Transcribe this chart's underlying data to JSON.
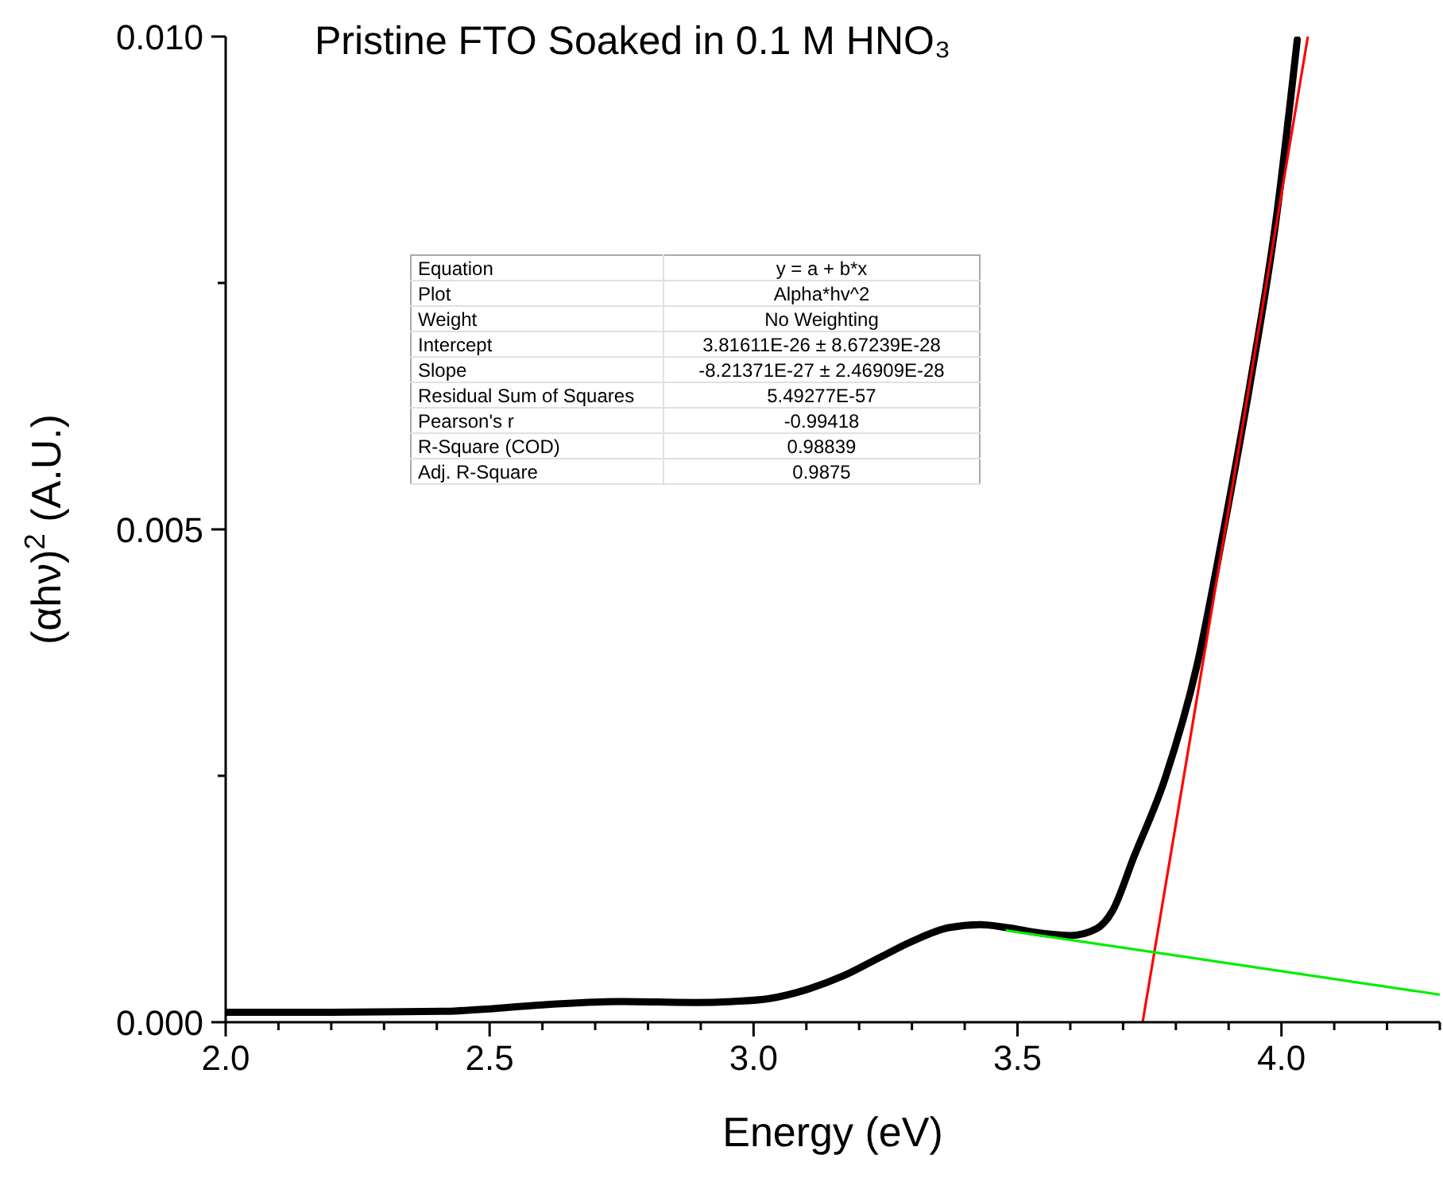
{
  "chart_data": {
    "type": "line",
    "title": "Pristine FTO Soaked in 0.1 M HNO₃",
    "xlabel": "Energy (eV)",
    "ylabel": "(αhν)$^{2}$ (A.U.)",
    "xlim": [
      2.0,
      4.3
    ],
    "ylim": [
      0,
      0.01
    ],
    "xticks": [
      {
        "value": 2.0,
        "label": "2.0"
      },
      {
        "value": 2.1,
        "label": null
      },
      {
        "value": 2.2,
        "label": null
      },
      {
        "value": 2.3,
        "label": null
      },
      {
        "value": 2.4,
        "label": null
      },
      {
        "value": 2.5,
        "label": "2.5"
      },
      {
        "value": 2.6,
        "label": null
      },
      {
        "value": 2.7,
        "label": null
      },
      {
        "value": 2.8,
        "label": null
      },
      {
        "value": 2.9,
        "label": null
      },
      {
        "value": 3.0,
        "label": "3.0"
      },
      {
        "value": 3.1,
        "label": null
      },
      {
        "value": 3.2,
        "label": null
      },
      {
        "value": 3.3,
        "label": null
      },
      {
        "value": 3.4,
        "label": null
      },
      {
        "value": 3.5,
        "label": "3.5"
      },
      {
        "value": 3.6,
        "label": null
      },
      {
        "value": 3.7,
        "label": null
      },
      {
        "value": 3.8,
        "label": null
      },
      {
        "value": 3.9,
        "label": null
      },
      {
        "value": 4.0,
        "label": "4.0"
      },
      {
        "value": 4.1,
        "label": null
      },
      {
        "value": 4.2,
        "label": null
      },
      {
        "value": 4.3,
        "label": null
      }
    ],
    "yticks": [
      {
        "value": 0,
        "label": "0.000"
      },
      {
        "value": 0.0025,
        "label": null
      },
      {
        "value": 0.005,
        "label": "0.005"
      },
      {
        "value": 0.0075,
        "label": null
      },
      {
        "value": 0.01,
        "label": "0.010"
      }
    ],
    "grid": false,
    "legend": false,
    "marker": "none",
    "line_style": "solid",
    "series": [
      {
        "color": "#000000",
        "x": [
          2.0,
          2.2,
          2.41,
          2.51,
          2.61,
          2.75,
          2.89,
          2.96,
          3.03,
          3.1,
          3.17,
          3.24,
          3.3,
          3.37,
          3.43,
          3.48,
          3.55,
          3.6,
          3.65,
          3.68,
          3.72,
          3.78,
          3.84,
          3.89,
          3.94,
          3.99,
          4.03
        ],
        "values": [
          0.0001,
          0.0001,
          0.00011,
          0.00014,
          0.00018,
          0.00021,
          0.0002,
          0.00021,
          0.00024,
          0.00033,
          0.00047,
          0.00066,
          0.00082,
          0.00096,
          0.00099,
          0.00096,
          0.0009,
          0.00088,
          0.00095,
          0.00113,
          0.00167,
          0.00248,
          0.00362,
          0.00498,
          0.00646,
          0.00815,
          0.00997
        ]
      },
      {
        "color": "#ff0000",
        "x": [
          3.737,
          4.05
        ],
        "values": [
          0,
          0.01
        ]
      },
      {
        "color": "#00ee00",
        "x": [
          3.48,
          4.3
        ],
        "values": [
          0.00093,
          0.00028
        ]
      }
    ],
    "annotations": [
      "Equation",
      "y = a + b*x",
      "Plot",
      "Alpha*hv^2",
      "Weight",
      "No Weighting",
      "Intercept",
      "3.81611E-26 ± 8.67239E-28",
      "Slope",
      "-8.21371E-27 ± 2.46909E-28",
      "Residual Sum of Squares",
      "5.49277E-57",
      "Pearson's r",
      "-0.99418",
      "R-Square (COD)",
      "0.98839",
      "Adj. R-Square",
      "0.9875"
    ]
  }
}
